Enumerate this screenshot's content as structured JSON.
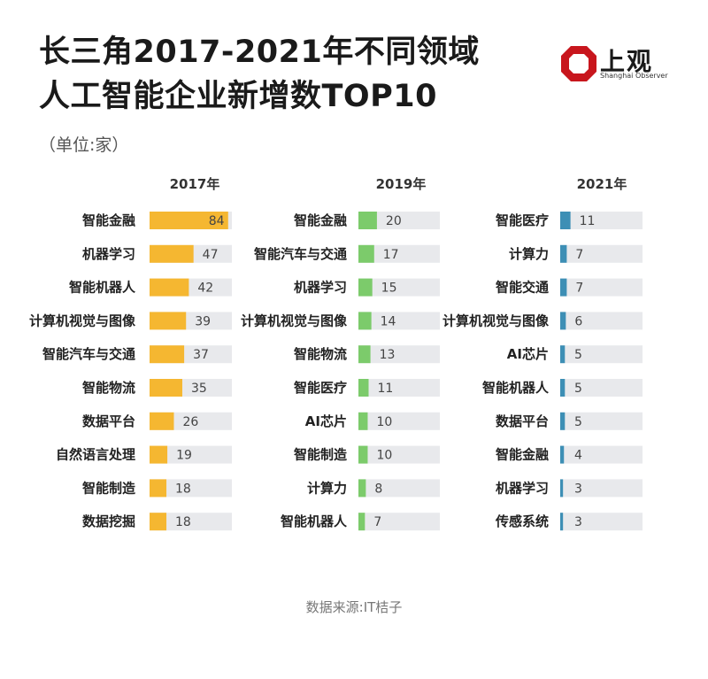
{
  "title_line1": "长三角2017-2021年不同领域",
  "title_line2": "人工智能企业新增数TOP10",
  "unit": "（单位:家）",
  "logo": {
    "name": "上观",
    "sub": "Shanghai Observer",
    "icon": "octagon-logo-icon",
    "color": "#c8161d"
  },
  "source": "数据来源:IT桔子",
  "colors": {
    "2017": "#f5b731",
    "2019": "#7ccb6b",
    "2021": "#3d8fb5",
    "track": "#e8e9ec"
  },
  "chart_data": [
    {
      "type": "bar",
      "title": "2017年",
      "categories": [
        "智能金融",
        "机器学习",
        "智能机器人",
        "计算机视觉与图像",
        "智能汽车与交通",
        "智能物流",
        "数据平台",
        "自然语言处理",
        "智能制造",
        "数据挖掘"
      ],
      "values": [
        84,
        47,
        42,
        39,
        37,
        35,
        26,
        19,
        18,
        18
      ]
    },
    {
      "type": "bar",
      "title": "2019年",
      "categories": [
        "智能金融",
        "智能汽车与交通",
        "机器学习",
        "计算机视觉与图像",
        "智能物流",
        "智能医疗",
        "AI芯片",
        "智能制造",
        "计算力",
        "智能机器人"
      ],
      "values": [
        20,
        17,
        15,
        14,
        13,
        11,
        10,
        10,
        8,
        7
      ]
    },
    {
      "type": "bar",
      "title": "2021年",
      "categories": [
        "智能医疗",
        "计算力",
        "智能交通",
        "计算机视觉与图像",
        "AI芯片",
        "智能机器人",
        "数据平台",
        "智能金融",
        "机器学习",
        "传感系统"
      ],
      "values": [
        11,
        7,
        7,
        6,
        5,
        5,
        5,
        4,
        3,
        3
      ]
    }
  ]
}
